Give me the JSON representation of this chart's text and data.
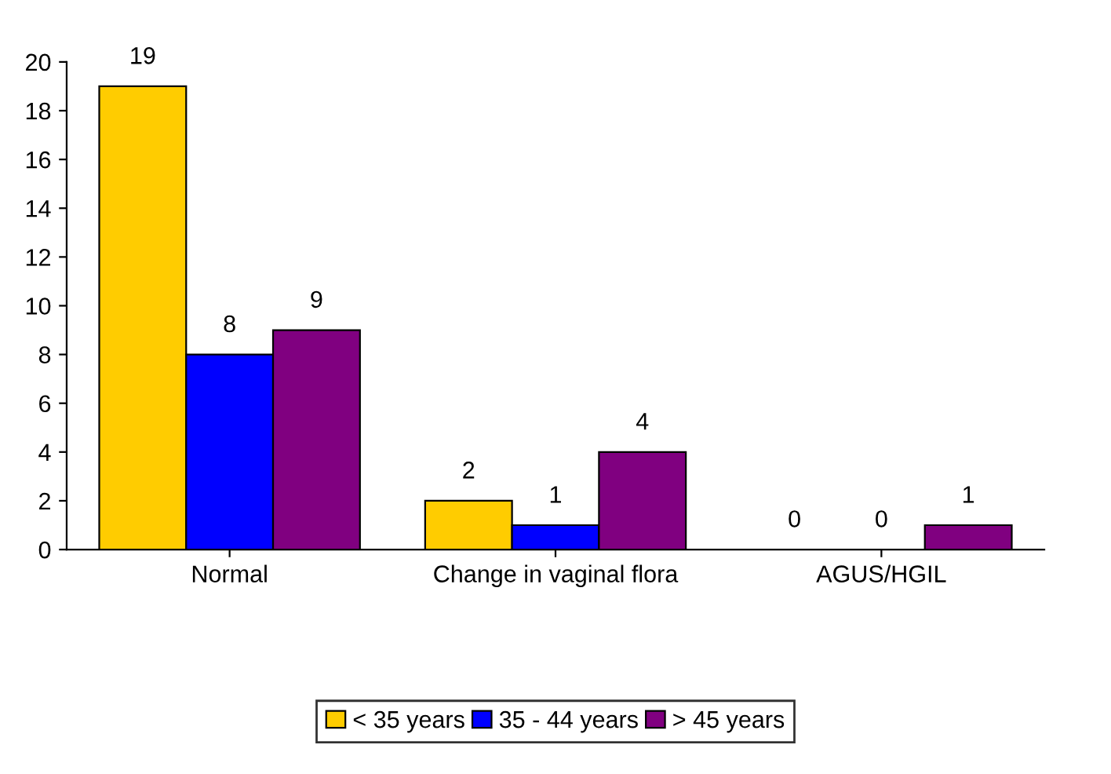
{
  "chart_data": {
    "type": "bar",
    "categories": [
      "Normal",
      "Change in vaginal flora",
      "AGUS/HGIL"
    ],
    "series": [
      {
        "name": "< 35 years",
        "color": "#ffcc00",
        "values": [
          19,
          2,
          0
        ]
      },
      {
        "name": "35 - 44 years",
        "color": "#0000ff",
        "values": [
          8,
          1,
          0
        ]
      },
      {
        "name": "> 45 years",
        "color": "#800080",
        "values": [
          9,
          4,
          1
        ]
      }
    ],
    "ylim": [
      0,
      20
    ],
    "yticks": [
      0,
      2,
      4,
      6,
      8,
      10,
      12,
      14,
      16,
      18,
      20
    ],
    "grid": false,
    "legend": "bottom",
    "data_labels": true
  }
}
